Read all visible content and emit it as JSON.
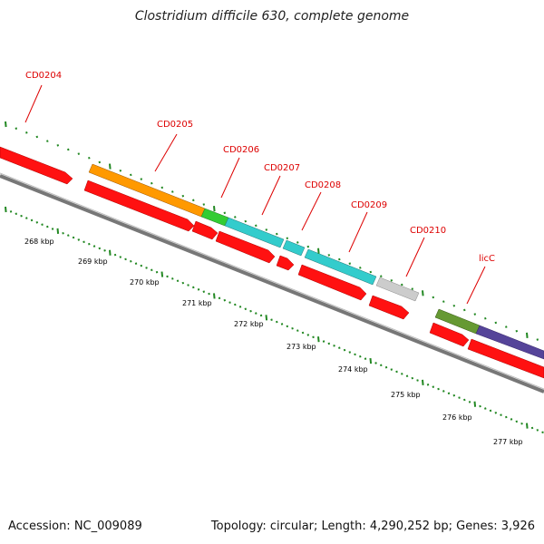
{
  "title": "Clostridium difficile 630, complete genome",
  "footer": {
    "accession": "Accession: NC_009089",
    "summary": "Topology: circular; Length: 4,290,252 bp; Genes: 3,926"
  },
  "colors": {
    "label": "#dd0000",
    "tick": "#228822",
    "backbone": "#888888",
    "cds_forward": "#ff0000",
    "orange": "#ff9900",
    "green": "#33cc33",
    "cyan": "#33cccc",
    "gray": "#cccccc",
    "olive": "#669933",
    "purple": "#554499"
  },
  "gene_labels": [
    "CD0204",
    "CD0205",
    "CD0206",
    "CD0207",
    "CD0208",
    "CD0209",
    "CD0210",
    "licC"
  ],
  "scale_labels": [
    "268 kbp",
    "269 kbp",
    "270 kbp",
    "271 kbp",
    "272 kbp",
    "273 kbp",
    "274 kbp",
    "275 kbp",
    "276 kbp",
    "277 kbp"
  ]
}
